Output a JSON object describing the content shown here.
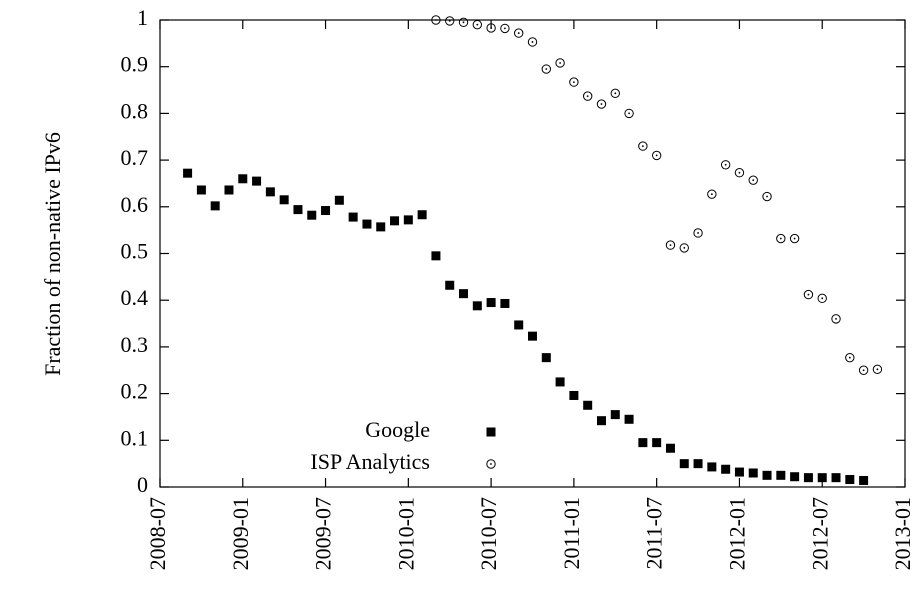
{
  "chart_data": {
    "type": "scatter",
    "ylabel": "Fraction of non-native IPv6",
    "xlim": [
      "2008-07",
      "2013-01"
    ],
    "xticks": [
      "2008-07",
      "2009-01",
      "2009-07",
      "2010-01",
      "2010-07",
      "2011-01",
      "2011-07",
      "2012-01",
      "2012-07",
      "2013-01"
    ],
    "ylim": [
      0,
      1
    ],
    "yticks": [
      0,
      0.1,
      0.2,
      0.3,
      0.4,
      0.5,
      0.6,
      0.7,
      0.8,
      0.9,
      1
    ],
    "grid": false,
    "legend": "bottom",
    "series": [
      {
        "name": "Google",
        "color": "#000000",
        "marker": "square",
        "x": [
          "2008-09",
          "2008-10",
          "2008-11",
          "2008-12",
          "2009-01",
          "2009-02",
          "2009-03",
          "2009-04",
          "2009-05",
          "2009-06",
          "2009-07",
          "2009-08",
          "2009-09",
          "2009-10",
          "2009-11",
          "2009-12",
          "2010-01",
          "2010-02",
          "2010-03",
          "2010-04",
          "2010-05",
          "2010-06",
          "2010-07",
          "2010-08",
          "2010-09",
          "2010-10",
          "2010-11",
          "2010-12",
          "2011-01",
          "2011-02",
          "2011-03",
          "2011-04",
          "2011-05",
          "2011-06",
          "2011-07",
          "2011-08",
          "2011-09",
          "2011-10",
          "2011-11",
          "2011-12",
          "2012-01",
          "2012-02",
          "2012-03",
          "2012-04",
          "2012-05",
          "2012-06",
          "2012-07",
          "2012-08",
          "2012-09",
          "2012-10"
        ],
        "values": [
          0.672,
          0.636,
          0.602,
          0.636,
          0.66,
          0.655,
          0.632,
          0.615,
          0.594,
          0.582,
          0.592,
          0.614,
          0.578,
          0.563,
          0.557,
          0.57,
          0.572,
          0.583,
          0.495,
          0.432,
          0.414,
          0.388,
          0.395,
          0.393,
          0.347,
          0.323,
          0.277,
          0.225,
          0.196,
          0.175,
          0.142,
          0.155,
          0.145,
          0.095,
          0.095,
          0.083,
          0.05,
          0.05,
          0.043,
          0.038,
          0.032,
          0.03,
          0.025,
          0.025,
          0.022,
          0.02,
          0.02,
          0.02,
          0.016,
          0.014
        ]
      },
      {
        "name": "ISP Analytics",
        "color": "#000000",
        "marker": "circle",
        "x": [
          "2010-03",
          "2010-04",
          "2010-05",
          "2010-06",
          "2010-07",
          "2010-08",
          "2010-09",
          "2010-10",
          "2010-11",
          "2010-12",
          "2011-01",
          "2011-02",
          "2011-03",
          "2011-04",
          "2011-05",
          "2011-06",
          "2011-07",
          "2011-08",
          "2011-09",
          "2011-10",
          "2011-11",
          "2011-12",
          "2012-01",
          "2012-02",
          "2012-03",
          "2012-04",
          "2012-05",
          "2012-06",
          "2012-07",
          "2012-08",
          "2012-09",
          "2012-10",
          "2012-11"
        ],
        "values": [
          1.0,
          0.998,
          0.995,
          0.99,
          0.983,
          0.982,
          0.972,
          0.953,
          0.895,
          0.908,
          0.867,
          0.837,
          0.82,
          0.843,
          0.8,
          0.73,
          0.71,
          0.518,
          0.512,
          0.544,
          0.627,
          0.69,
          0.673,
          0.657,
          0.622,
          0.532,
          0.532,
          0.412,
          0.404,
          0.36,
          0.277,
          0.25,
          0.252
        ]
      }
    ]
  }
}
